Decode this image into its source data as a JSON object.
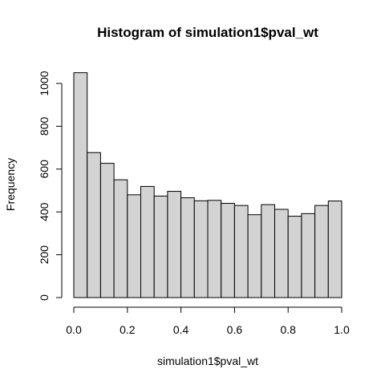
{
  "chart_data": {
    "type": "bar",
    "title": "Histogram of simulation1$pval_wt",
    "xlabel": "simulation1$pval_wt",
    "ylabel": "Frequency",
    "bin_width": 0.05,
    "bin_starts": [
      0.0,
      0.05,
      0.1,
      0.15,
      0.2,
      0.25,
      0.3,
      0.35,
      0.4,
      0.45,
      0.5,
      0.55,
      0.6,
      0.65,
      0.7,
      0.75,
      0.8,
      0.85,
      0.9,
      0.95
    ],
    "values": [
      1050,
      677,
      627,
      550,
      480,
      519,
      474,
      496,
      466,
      452,
      454,
      440,
      430,
      387,
      434,
      412,
      380,
      392,
      430,
      451
    ],
    "xlim": [
      0,
      1
    ],
    "ylim": [
      0,
      1050
    ],
    "x_ticks": [
      0,
      0.2,
      0.4,
      0.6,
      0.8,
      1
    ],
    "x_tick_labels": [
      "0.0",
      "0.2",
      "0.4",
      "0.6",
      "0.8",
      "1.0"
    ],
    "y_ticks": [
      0,
      200,
      400,
      600,
      800,
      1000
    ],
    "y_tick_labels": [
      "0",
      "200",
      "400",
      "600",
      "800",
      "1000"
    ],
    "bar_color": "#d3d3d3",
    "edge_color": "#000000",
    "grid": false,
    "legend": "none"
  }
}
